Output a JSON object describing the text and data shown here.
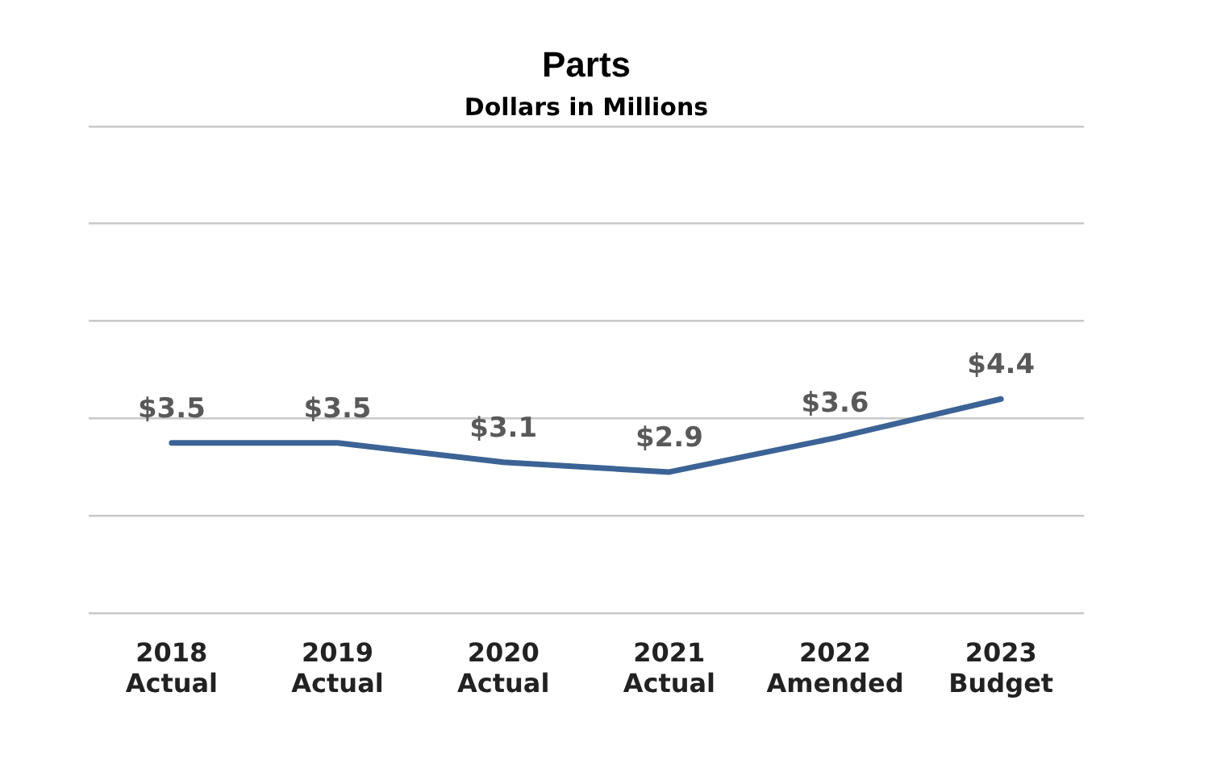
{
  "chart_data": {
    "type": "line",
    "title": "Parts",
    "subtitle": "Dollars in Millions",
    "categories": [
      "2018 Actual",
      "2019 Actual",
      "2020 Actual",
      "2021 Actual",
      "2022 Amended",
      "2023 Budget"
    ],
    "values": [
      3.5,
      3.5,
      3.1,
      2.9,
      3.6,
      4.4
    ],
    "color": "#3c6396",
    "value_labels": [
      "$3.5",
      "$3.5",
      "$3.1",
      "$2.9",
      "$3.6",
      "$4.4"
    ],
    "ylim": [
      0,
      10
    ],
    "yticks": [
      0,
      2,
      4,
      6,
      8,
      10
    ],
    "tick_labels": "x",
    "grid": "y",
    "legend": false,
    "marker": "none",
    "line_style": "solid"
  }
}
